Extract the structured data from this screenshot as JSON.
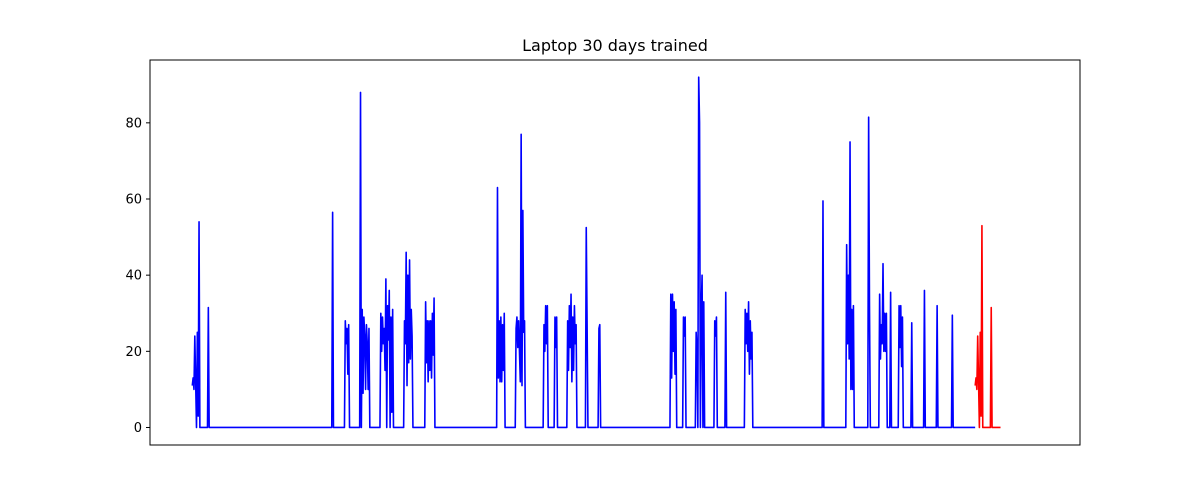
{
  "chart_data": {
    "type": "line",
    "title": "Laptop 30 days trained",
    "xlabel": "",
    "ylabel": "",
    "x_ticks_shown": false,
    "xlim": [
      -50,
      1050
    ],
    "ylim": [
      -4.6,
      96.5
    ],
    "y_ticks": [
      0,
      20,
      40,
      60,
      80
    ],
    "grid": false,
    "legend": "none",
    "series": [
      {
        "color": "#0000ff",
        "points": [
          [
            0,
            11
          ],
          [
            1,
            13
          ],
          [
            2,
            10
          ],
          [
            3,
            24
          ],
          [
            4,
            12
          ],
          [
            5,
            0
          ],
          [
            6,
            25
          ],
          [
            7,
            3
          ],
          [
            8,
            54
          ],
          [
            9,
            0
          ],
          [
            18,
            0
          ],
          [
            19,
            31.5
          ],
          [
            20,
            0
          ],
          [
            165,
            0
          ],
          [
            166,
            56.5
          ],
          [
            167,
            0
          ],
          [
            180,
            0
          ],
          [
            181,
            28
          ],
          [
            182,
            22
          ],
          [
            183,
            26
          ],
          [
            184,
            14
          ],
          [
            185,
            27
          ],
          [
            186,
            0
          ],
          [
            198,
            0
          ],
          [
            199,
            88
          ],
          [
            200,
            0
          ],
          [
            201,
            31
          ],
          [
            202,
            9
          ],
          [
            203,
            29
          ],
          [
            204,
            24
          ],
          [
            205,
            10
          ],
          [
            206,
            27
          ],
          [
            207,
            22
          ],
          [
            208,
            10
          ],
          [
            209,
            26
          ],
          [
            210,
            0
          ],
          [
            222,
            0
          ],
          [
            223,
            30
          ],
          [
            224,
            20
          ],
          [
            225,
            29
          ],
          [
            226,
            22
          ],
          [
            227,
            26
          ],
          [
            228,
            15
          ],
          [
            229,
            39
          ],
          [
            230,
            0
          ],
          [
            231,
            32
          ],
          [
            232,
            23
          ],
          [
            233,
            36
          ],
          [
            234,
            0
          ],
          [
            235,
            29
          ],
          [
            236,
            4
          ],
          [
            237,
            31
          ],
          [
            238,
            0
          ],
          [
            250,
            0
          ],
          [
            251,
            28
          ],
          [
            252,
            22
          ],
          [
            253,
            46
          ],
          [
            254,
            11
          ],
          [
            255,
            40
          ],
          [
            256,
            17
          ],
          [
            257,
            44
          ],
          [
            258,
            18
          ],
          [
            259,
            31
          ],
          [
            260,
            24
          ],
          [
            261,
            0
          ],
          [
            275,
            0
          ],
          [
            276,
            33
          ],
          [
            277,
            17
          ],
          [
            278,
            28
          ],
          [
            279,
            12
          ],
          [
            280,
            28
          ],
          [
            281,
            15
          ],
          [
            282,
            28
          ],
          [
            283,
            13
          ],
          [
            284,
            30
          ],
          [
            285,
            19
          ],
          [
            286,
            34
          ],
          [
            287,
            0
          ],
          [
            360,
            0
          ],
          [
            361,
            63
          ],
          [
            362,
            13
          ],
          [
            363,
            28
          ],
          [
            364,
            12
          ],
          [
            365,
            29
          ],
          [
            366,
            12
          ],
          [
            367,
            27
          ],
          [
            368,
            15
          ],
          [
            369,
            30
          ],
          [
            370,
            0
          ],
          [
            382,
            0
          ],
          [
            383,
            26
          ],
          [
            384,
            29
          ],
          [
            385,
            21
          ],
          [
            386,
            28
          ],
          [
            387,
            20
          ],
          [
            388,
            12
          ],
          [
            389,
            77
          ],
          [
            390,
            11
          ],
          [
            391,
            57
          ],
          [
            392,
            25
          ],
          [
            393,
            28
          ],
          [
            394,
            0
          ],
          [
            415,
            0
          ],
          [
            416,
            27
          ],
          [
            417,
            20
          ],
          [
            418,
            32
          ],
          [
            419,
            22
          ],
          [
            420,
            32
          ],
          [
            421,
            0
          ],
          [
            428,
            0
          ],
          [
            429,
            29
          ],
          [
            430,
            21
          ],
          [
            431,
            29
          ],
          [
            432,
            0
          ],
          [
            443,
            0
          ],
          [
            444,
            28
          ],
          [
            445,
            15
          ],
          [
            446,
            32
          ],
          [
            447,
            21
          ],
          [
            448,
            35
          ],
          [
            449,
            12
          ],
          [
            450,
            29
          ],
          [
            451,
            15
          ],
          [
            452,
            32
          ],
          [
            453,
            22
          ],
          [
            454,
            27
          ],
          [
            455,
            0
          ],
          [
            465,
            0
          ],
          [
            466,
            52.5
          ],
          [
            467,
            27
          ],
          [
            468,
            0
          ],
          [
            480,
            0
          ],
          [
            481,
            26
          ],
          [
            482,
            27
          ],
          [
            483,
            0
          ],
          [
            565,
            0
          ],
          [
            566,
            35
          ],
          [
            567,
            13
          ],
          [
            568,
            35
          ],
          [
            569,
            20
          ],
          [
            570,
            33
          ],
          [
            571,
            14
          ],
          [
            572,
            31
          ],
          [
            573,
            0
          ],
          [
            580,
            0
          ],
          [
            581,
            29
          ],
          [
            582,
            24
          ],
          [
            583,
            29
          ],
          [
            584,
            0
          ],
          [
            595,
            0
          ],
          [
            596,
            25
          ],
          [
            597,
            20
          ],
          [
            598,
            0
          ],
          [
            599,
            92
          ],
          [
            600,
            80
          ],
          [
            601,
            0
          ],
          [
            602,
            31
          ],
          [
            603,
            40
          ],
          [
            604,
            0
          ],
          [
            605,
            33
          ],
          [
            606,
            0
          ],
          [
            617,
            0
          ],
          [
            618,
            28
          ],
          [
            619,
            24
          ],
          [
            620,
            29
          ],
          [
            621,
            0
          ],
          [
            630,
            0
          ],
          [
            631,
            35.5
          ],
          [
            632,
            0
          ],
          [
            653,
            0
          ],
          [
            654,
            31
          ],
          [
            655,
            22
          ],
          [
            656,
            30
          ],
          [
            657,
            20
          ],
          [
            658,
            33
          ],
          [
            659,
            14
          ],
          [
            660,
            28
          ],
          [
            661,
            18
          ],
          [
            662,
            25
          ],
          [
            663,
            0
          ],
          [
            745,
            0
          ],
          [
            746,
            59.5
          ],
          [
            747,
            0
          ],
          [
            773,
            0
          ],
          [
            774,
            48
          ],
          [
            775,
            22
          ],
          [
            776,
            40
          ],
          [
            777,
            18
          ],
          [
            778,
            75
          ],
          [
            779,
            10
          ],
          [
            780,
            31
          ],
          [
            781,
            10
          ],
          [
            782,
            32
          ],
          [
            783,
            0
          ],
          [
            799,
            0
          ],
          [
            800,
            81.5
          ],
          [
            801,
            32
          ],
          [
            802,
            0
          ],
          [
            812,
            0
          ],
          [
            813,
            35
          ],
          [
            814,
            18
          ],
          [
            815,
            27
          ],
          [
            816,
            22
          ],
          [
            817,
            43
          ],
          [
            818,
            20
          ],
          [
            819,
            30
          ],
          [
            820,
            20
          ],
          [
            821,
            30
          ],
          [
            822,
            0
          ],
          [
            825,
            0
          ],
          [
            826,
            35.5
          ],
          [
            827,
            0
          ],
          [
            835,
            0
          ],
          [
            836,
            32
          ],
          [
            837,
            21
          ],
          [
            838,
            32
          ],
          [
            839,
            16
          ],
          [
            840,
            29
          ],
          [
            841,
            0
          ],
          [
            850,
            0
          ],
          [
            851,
            27.5
          ],
          [
            852,
            0
          ],
          [
            865,
            0
          ],
          [
            866,
            36
          ],
          [
            867,
            0
          ],
          [
            880,
            0
          ],
          [
            881,
            32
          ],
          [
            882,
            0
          ],
          [
            898,
            0
          ],
          [
            899,
            29.5
          ],
          [
            900,
            0
          ],
          [
            926,
            0
          ]
        ]
      },
      {
        "color": "#ff0000",
        "points": [
          [
            926,
            11
          ],
          [
            927,
            13
          ],
          [
            928,
            10
          ],
          [
            929,
            24
          ],
          [
            930,
            12
          ],
          [
            931,
            0
          ],
          [
            932,
            25
          ],
          [
            933,
            3
          ],
          [
            934,
            53
          ],
          [
            935,
            0
          ],
          [
            944,
            0
          ],
          [
            945,
            31.5
          ],
          [
            946,
            0
          ],
          [
            956,
            0
          ]
        ]
      }
    ]
  }
}
